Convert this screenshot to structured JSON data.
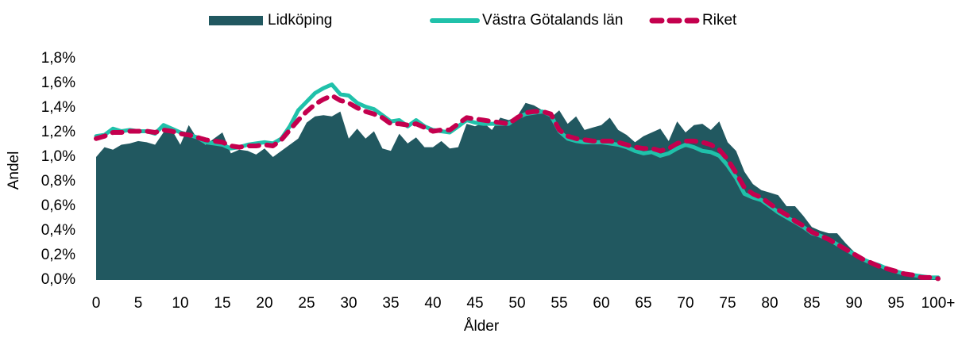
{
  "chart_data": {
    "type": "line",
    "xlabel": "Ålder",
    "ylabel": "Andel",
    "categories": [
      "0",
      null,
      null,
      null,
      null,
      "5",
      null,
      null,
      null,
      null,
      "10",
      null,
      null,
      null,
      null,
      "15",
      null,
      null,
      null,
      null,
      "20",
      null,
      null,
      null,
      null,
      "25",
      null,
      null,
      null,
      null,
      "30",
      null,
      null,
      null,
      null,
      "35",
      null,
      null,
      null,
      null,
      "40",
      null,
      null,
      null,
      null,
      "45",
      null,
      null,
      null,
      null,
      "50",
      null,
      null,
      null,
      null,
      "55",
      null,
      null,
      null,
      null,
      "60",
      null,
      null,
      null,
      null,
      "65",
      null,
      null,
      null,
      null,
      "70",
      null,
      null,
      null,
      null,
      "75",
      null,
      null,
      null,
      null,
      "80",
      null,
      null,
      null,
      null,
      "85",
      null,
      null,
      null,
      null,
      "90",
      null,
      null,
      null,
      null,
      "95",
      null,
      null,
      null,
      null,
      "100+"
    ],
    "ylim": [
      0,
      1.8
    ],
    "yticks": [
      {
        "value": 0,
        "label": "0,0%"
      },
      {
        "value": 0.2,
        "label": "0,2%"
      },
      {
        "value": 0.4,
        "label": "0,4%"
      },
      {
        "value": 0.6,
        "label": "0,6%"
      },
      {
        "value": 0.8,
        "label": "0,8%"
      },
      {
        "value": 1.0,
        "label": "1,0%"
      },
      {
        "value": 1.2,
        "label": "1,2%"
      },
      {
        "value": 1.4,
        "label": "1,4%"
      },
      {
        "value": 1.6,
        "label": "1,6%"
      },
      {
        "value": 1.8,
        "label": "1,8%"
      }
    ],
    "grid": false,
    "legend": "top",
    "series": [
      {
        "name": "Lidköping",
        "style": "area",
        "color": "#215860",
        "values": [
          1.0,
          1.08,
          1.06,
          1.1,
          1.11,
          1.13,
          1.12,
          1.1,
          1.2,
          1.22,
          1.1,
          1.26,
          1.15,
          1.1,
          1.15,
          1.2,
          1.03,
          1.06,
          1.05,
          1.02,
          1.07,
          1.0,
          1.05,
          1.1,
          1.15,
          1.28,
          1.33,
          1.34,
          1.33,
          1.37,
          1.15,
          1.23,
          1.15,
          1.21,
          1.07,
          1.05,
          1.19,
          1.11,
          1.16,
          1.08,
          1.08,
          1.13,
          1.07,
          1.08,
          1.27,
          1.25,
          1.28,
          1.22,
          1.32,
          1.3,
          1.33,
          1.44,
          1.42,
          1.38,
          1.32,
          1.38,
          1.27,
          1.33,
          1.22,
          1.24,
          1.26,
          1.32,
          1.22,
          1.18,
          1.12,
          1.17,
          1.2,
          1.23,
          1.13,
          1.29,
          1.2,
          1.26,
          1.27,
          1.22,
          1.29,
          1.12,
          1.05,
          0.88,
          0.78,
          0.73,
          0.71,
          0.69,
          0.6,
          0.6,
          0.52,
          0.43,
          0.4,
          0.38,
          0.38,
          0.3,
          0.23,
          0.19,
          0.15,
          0.12,
          0.1,
          0.07,
          0.05,
          0.04,
          0.03,
          0.02,
          0.02
        ]
      },
      {
        "name": "Västra Götalands län",
        "style": "solid",
        "color": "#20c1aa",
        "values": [
          1.17,
          1.18,
          1.23,
          1.21,
          1.22,
          1.21,
          1.21,
          1.19,
          1.26,
          1.23,
          1.2,
          1.18,
          1.16,
          1.12,
          1.11,
          1.1,
          1.07,
          1.08,
          1.1,
          1.11,
          1.12,
          1.11,
          1.15,
          1.25,
          1.38,
          1.45,
          1.52,
          1.56,
          1.59,
          1.51,
          1.5,
          1.44,
          1.41,
          1.39,
          1.34,
          1.29,
          1.3,
          1.25,
          1.3,
          1.25,
          1.22,
          1.21,
          1.2,
          1.25,
          1.3,
          1.28,
          1.27,
          1.27,
          1.27,
          1.27,
          1.32,
          1.35,
          1.36,
          1.37,
          1.34,
          1.21,
          1.15,
          1.13,
          1.12,
          1.12,
          1.12,
          1.11,
          1.1,
          1.08,
          1.05,
          1.03,
          1.04,
          1.01,
          1.03,
          1.07,
          1.1,
          1.08,
          1.05,
          1.04,
          1.01,
          0.93,
          0.83,
          0.7,
          0.67,
          0.65,
          0.6,
          0.55,
          0.51,
          0.47,
          0.43,
          0.38,
          0.36,
          0.33,
          0.29,
          0.25,
          0.21,
          0.17,
          0.14,
          0.12,
          0.09,
          0.07,
          0.05,
          0.04,
          0.03,
          0.02,
          0.02
        ]
      },
      {
        "name": "Riket",
        "style": "dashed",
        "color": "#c4004e",
        "values": [
          1.15,
          1.17,
          1.2,
          1.2,
          1.21,
          1.21,
          1.21,
          1.2,
          1.22,
          1.21,
          1.19,
          1.18,
          1.16,
          1.14,
          1.13,
          1.12,
          1.09,
          1.08,
          1.09,
          1.09,
          1.1,
          1.09,
          1.14,
          1.22,
          1.3,
          1.37,
          1.43,
          1.47,
          1.5,
          1.46,
          1.44,
          1.4,
          1.37,
          1.35,
          1.32,
          1.27,
          1.27,
          1.26,
          1.27,
          1.24,
          1.21,
          1.22,
          1.22,
          1.27,
          1.32,
          1.31,
          1.3,
          1.29,
          1.28,
          1.27,
          1.32,
          1.36,
          1.37,
          1.37,
          1.35,
          1.22,
          1.17,
          1.15,
          1.14,
          1.13,
          1.13,
          1.13,
          1.12,
          1.1,
          1.08,
          1.07,
          1.07,
          1.05,
          1.07,
          1.11,
          1.13,
          1.13,
          1.12,
          1.1,
          1.06,
          0.98,
          0.87,
          0.75,
          0.7,
          0.67,
          0.62,
          0.57,
          0.53,
          0.48,
          0.44,
          0.39,
          0.36,
          0.33,
          0.29,
          0.25,
          0.21,
          0.17,
          0.14,
          0.11,
          0.09,
          0.07,
          0.05,
          0.04,
          0.02,
          0.02,
          0.01
        ]
      }
    ]
  }
}
